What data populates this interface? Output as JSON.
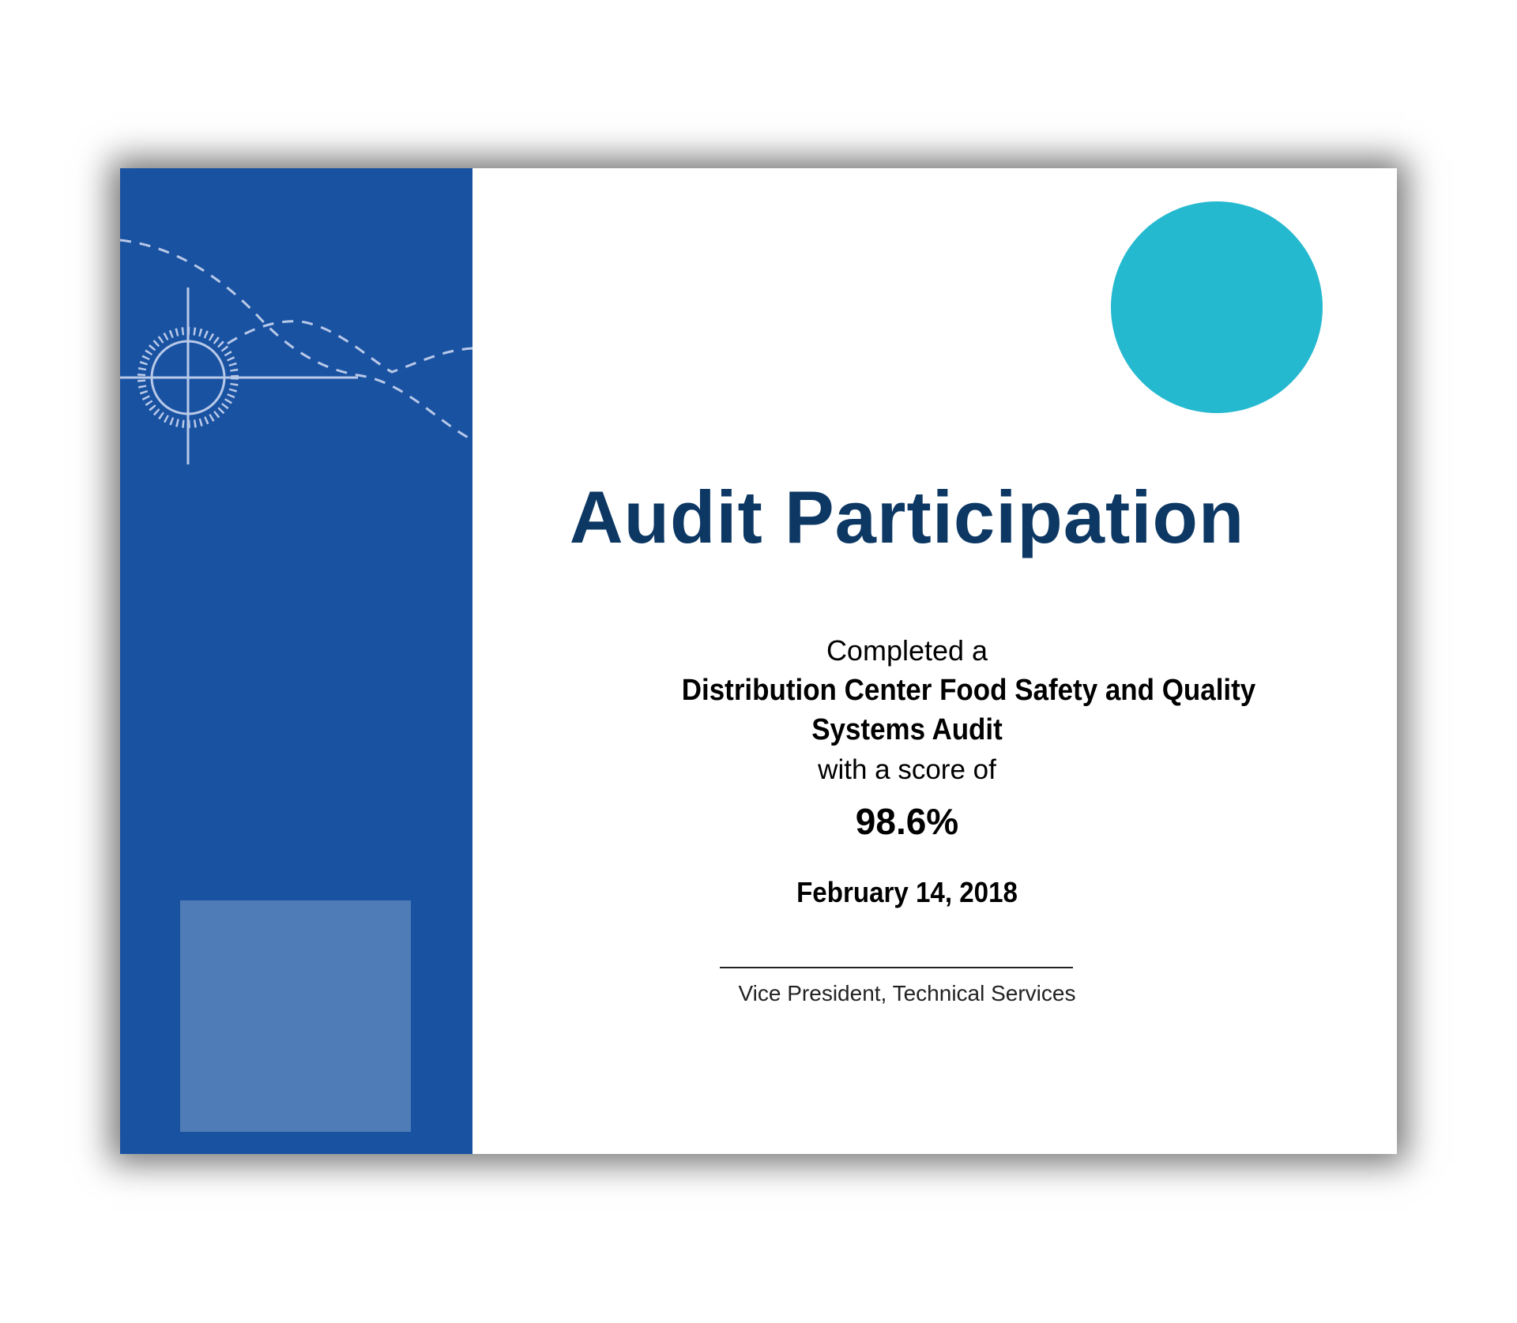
{
  "certificate": {
    "title": "Audit Participation",
    "completed_text": "Completed a",
    "program_line1": "Distribution Center Food Safety and Quality",
    "program_line2": "Systems Audit",
    "score_label": "with a score of",
    "score": "98.6%",
    "date": "February 14, 2018",
    "signatory_title": "Vice President, Technical Services"
  },
  "colors": {
    "panel": "#1a52a2",
    "panel_square": "#4f7bb7",
    "title": "#0d3864",
    "accent_circle": "#25b9d0"
  }
}
